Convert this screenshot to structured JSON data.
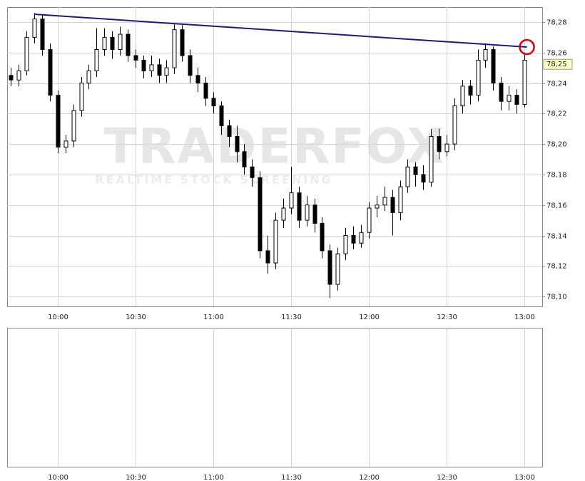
{
  "chart_data": {
    "type": "candlestick",
    "watermark": {
      "brand": "TRADERFOX",
      "tagline": "REALTIME STOCK SCREENING"
    },
    "x": [
      582,
      585,
      588,
      591,
      594,
      597,
      600,
      603,
      606,
      609,
      612,
      615,
      618,
      621,
      624,
      627,
      630,
      633,
      636,
      639,
      642,
      645,
      648,
      651,
      654,
      657,
      660,
      663,
      666,
      669,
      672,
      675,
      678,
      681,
      684,
      687,
      690,
      693,
      696,
      699,
      702,
      705,
      708,
      711,
      714,
      717,
      720,
      723,
      726,
      729,
      732,
      735,
      738,
      741,
      744,
      747,
      750,
      753,
      756,
      759,
      762,
      765,
      768,
      771,
      774,
      777,
      780
    ],
    "open": [
      78.245,
      78.242,
      78.248,
      78.27,
      78.282,
      78.262,
      78.232,
      78.198,
      78.202,
      78.222,
      78.24,
      78.248,
      78.262,
      78.27,
      78.262,
      78.272,
      78.258,
      78.255,
      78.248,
      78.252,
      78.245,
      78.25,
      78.275,
      78.258,
      78.245,
      78.24,
      78.23,
      78.225,
      78.212,
      78.205,
      78.195,
      78.185,
      78.178,
      78.13,
      78.122,
      78.15,
      78.158,
      78.168,
      78.15,
      78.16,
      78.148,
      78.13,
      78.108,
      78.128,
      78.14,
      78.135,
      78.142,
      78.158,
      78.16,
      78.165,
      78.155,
      78.172,
      78.185,
      78.18,
      78.175,
      78.205,
      78.195,
      78.2,
      78.225,
      78.238,
      78.232,
      78.255,
      78.262,
      78.24,
      78.228,
      78.232,
      78.226
    ],
    "high": [
      78.25,
      78.252,
      78.274,
      78.286,
      78.285,
      78.266,
      78.235,
      78.206,
      78.226,
      78.244,
      78.252,
      78.276,
      78.276,
      78.274,
      78.277,
      78.275,
      78.262,
      78.258,
      78.258,
      78.256,
      78.255,
      78.279,
      78.278,
      78.262,
      78.25,
      78.244,
      78.234,
      78.228,
      78.216,
      78.212,
      78.2,
      78.19,
      78.182,
      78.14,
      78.155,
      78.164,
      78.185,
      78.172,
      78.166,
      78.164,
      78.152,
      78.134,
      78.132,
      78.145,
      78.146,
      78.147,
      78.162,
      78.166,
      78.172,
      78.17,
      78.176,
      78.19,
      78.188,
      78.186,
      78.21,
      78.21,
      78.206,
      78.23,
      78.242,
      78.242,
      78.262,
      78.266,
      78.264,
      78.244,
      78.238,
      78.236,
      78.26
    ],
    "low": [
      78.238,
      78.238,
      78.245,
      78.266,
      78.258,
      78.228,
      78.194,
      78.194,
      78.198,
      78.218,
      78.236,
      78.244,
      78.258,
      78.256,
      78.258,
      78.254,
      78.25,
      78.243,
      78.244,
      78.24,
      78.24,
      78.246,
      78.254,
      78.24,
      78.234,
      78.225,
      78.22,
      78.206,
      78.198,
      78.188,
      78.18,
      78.172,
      78.125,
      78.115,
      78.118,
      78.145,
      78.154,
      78.145,
      78.146,
      78.142,
      78.125,
      78.099,
      78.104,
      78.124,
      78.131,
      78.132,
      78.138,
      78.152,
      78.156,
      78.14,
      78.15,
      78.168,
      78.172,
      78.17,
      78.172,
      78.19,
      78.192,
      78.196,
      78.22,
      78.226,
      78.228,
      78.25,
      78.235,
      78.222,
      78.222,
      78.22,
      78.224
    ],
    "close": [
      78.242,
      78.248,
      78.27,
      78.282,
      78.262,
      78.232,
      78.198,
      78.202,
      78.222,
      78.24,
      78.248,
      78.262,
      78.27,
      78.262,
      78.272,
      78.258,
      78.255,
      78.248,
      78.252,
      78.245,
      78.25,
      78.275,
      78.258,
      78.245,
      78.24,
      78.23,
      78.225,
      78.212,
      78.205,
      78.195,
      78.185,
      78.178,
      78.13,
      78.122,
      78.15,
      78.158,
      78.168,
      78.15,
      78.16,
      78.148,
      78.13,
      78.108,
      78.128,
      78.14,
      78.135,
      78.142,
      78.158,
      78.16,
      78.165,
      78.155,
      78.172,
      78.185,
      78.18,
      78.175,
      78.205,
      78.195,
      78.2,
      78.225,
      78.238,
      78.232,
      78.255,
      78.262,
      78.24,
      78.228,
      78.232,
      78.226,
      78.255
    ],
    "up_color": "#ffffff",
    "down_color": "#000000",
    "xlim": [
      580.5,
      786.9
    ],
    "ylim": [
      78.0935,
      78.2898
    ],
    "xticks": [
      {
        "value": 600,
        "label": "10:00"
      },
      {
        "value": 630,
        "label": "10:30"
      },
      {
        "value": 660,
        "label": "11:00"
      },
      {
        "value": 690,
        "label": "11:30"
      },
      {
        "value": 720,
        "label": "12:00"
      },
      {
        "value": 750,
        "label": "12:30"
      },
      {
        "value": 780,
        "label": "13:00"
      }
    ],
    "yticks": [
      {
        "value": 78.1,
        "label": "78,10"
      },
      {
        "value": 78.12,
        "label": "78,12"
      },
      {
        "value": 78.14,
        "label": "78,14"
      },
      {
        "value": 78.16,
        "label": "78,16"
      },
      {
        "value": 78.18,
        "label": "78,18"
      },
      {
        "value": 78.2,
        "label": "78,20"
      },
      {
        "value": 78.22,
        "label": "78,22"
      },
      {
        "value": 78.24,
        "label": "78,24"
      },
      {
        "value": 78.26,
        "label": "78,26"
      },
      {
        "value": 78.28,
        "label": "78,28"
      }
    ],
    "grid": true,
    "trendline": {
      "x": [
        591,
        781
      ],
      "y": [
        78.2851,
        78.2636
      ],
      "color": "#1a1a80"
    },
    "signal": {
      "x": 781,
      "y": 78.2636,
      "color": "#e00000"
    },
    "last_price": {
      "value": 78.2523,
      "label": "78,25",
      "color": "#ffffc0"
    }
  }
}
